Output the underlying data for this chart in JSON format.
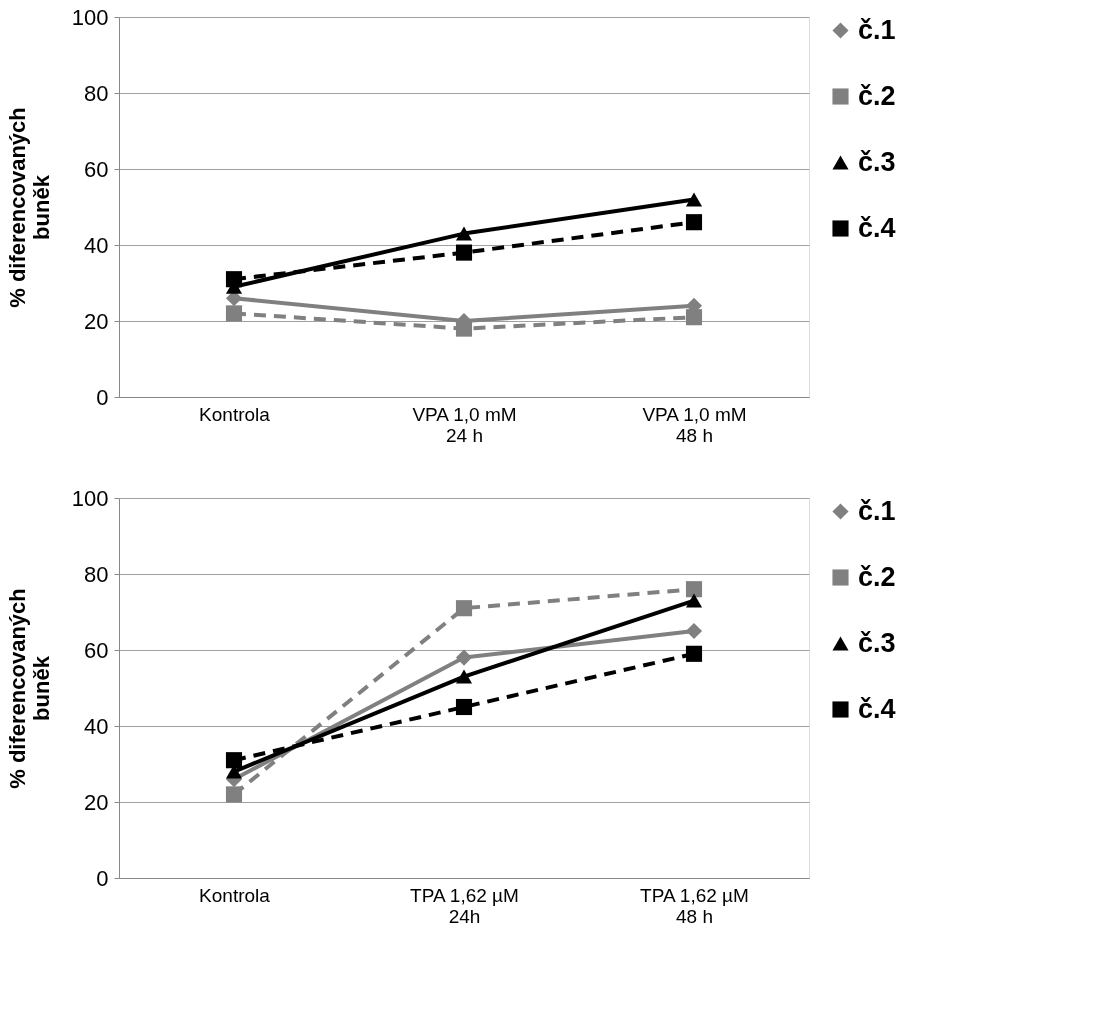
{
  "chart_data": [
    {
      "type": "line",
      "ylabel": "% diferencovaných\nbuněk",
      "categories": [
        "Kontrola",
        "VPA 1,0 mM\n24 h",
        "VPA 1,0 mM\n48 h"
      ],
      "ylim": [
        0,
        100
      ],
      "yticks": [
        0,
        20,
        40,
        60,
        80,
        100
      ],
      "grid": "y",
      "legend": "right",
      "series": [
        {
          "name": "č.1",
          "color": "#808080",
          "marker": "diamond",
          "line_style": "solid",
          "values": [
            26,
            20,
            24
          ]
        },
        {
          "name": "č.2",
          "color": "#808080",
          "marker": "square",
          "line_style": "dashed",
          "values": [
            22,
            18,
            21
          ]
        },
        {
          "name": "č.3",
          "color": "#000000",
          "marker": "triangle",
          "line_style": "solid",
          "values": [
            29,
            43,
            52
          ]
        },
        {
          "name": "č.4",
          "color": "#000000",
          "marker": "square",
          "line_style": "dashed",
          "values": [
            31,
            38,
            46
          ]
        }
      ]
    },
    {
      "type": "line",
      "ylabel": "% diferencovaných\nbuněk",
      "categories": [
        "Kontrola",
        "TPA  1,62 µM\n24h",
        "TPA  1,62 µM\n48 h"
      ],
      "ylim": [
        0,
        100
      ],
      "yticks": [
        0,
        20,
        40,
        60,
        80,
        100
      ],
      "grid": "y",
      "legend": "right",
      "series": [
        {
          "name": "č.1",
          "color": "#808080",
          "marker": "diamond",
          "line_style": "solid",
          "values": [
            26,
            58,
            65
          ]
        },
        {
          "name": "č.2",
          "color": "#808080",
          "marker": "square",
          "line_style": "dashed",
          "values": [
            22,
            71,
            76
          ]
        },
        {
          "name": "č.3",
          "color": "#000000",
          "marker": "triangle",
          "line_style": "solid",
          "values": [
            28,
            53,
            73
          ]
        },
        {
          "name": "č.4",
          "color": "#000000",
          "marker": "square",
          "line_style": "dashed",
          "values": [
            31,
            45,
            59
          ]
        }
      ]
    }
  ]
}
